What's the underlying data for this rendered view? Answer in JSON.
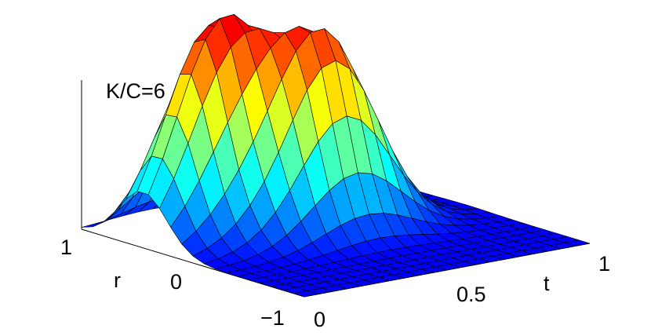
{
  "chart_data": {
    "type": "surface",
    "annotation": "K/C=6",
    "x_axis": {
      "label": "t",
      "range": [
        0,
        1
      ],
      "ticks": [
        "0",
        "0.5",
        "1"
      ]
    },
    "y_axis": {
      "label": "r",
      "range": [
        -1,
        1
      ],
      "ticks": [
        "−1",
        "0",
        "1"
      ]
    },
    "z_axis": {
      "label": "",
      "ticks": []
    },
    "grid": false,
    "colormap": "jet",
    "surface": {
      "peaks": [
        {
          "t": 0.25,
          "r": 0.45,
          "height": 1.0
        },
        {
          "t": 0.5,
          "r": 0.1,
          "height": 0.93
        }
      ],
      "mesh_t_count": 21,
      "mesh_r_count": 21,
      "spread_t": 0.22,
      "spread_r": 0.3
    }
  }
}
